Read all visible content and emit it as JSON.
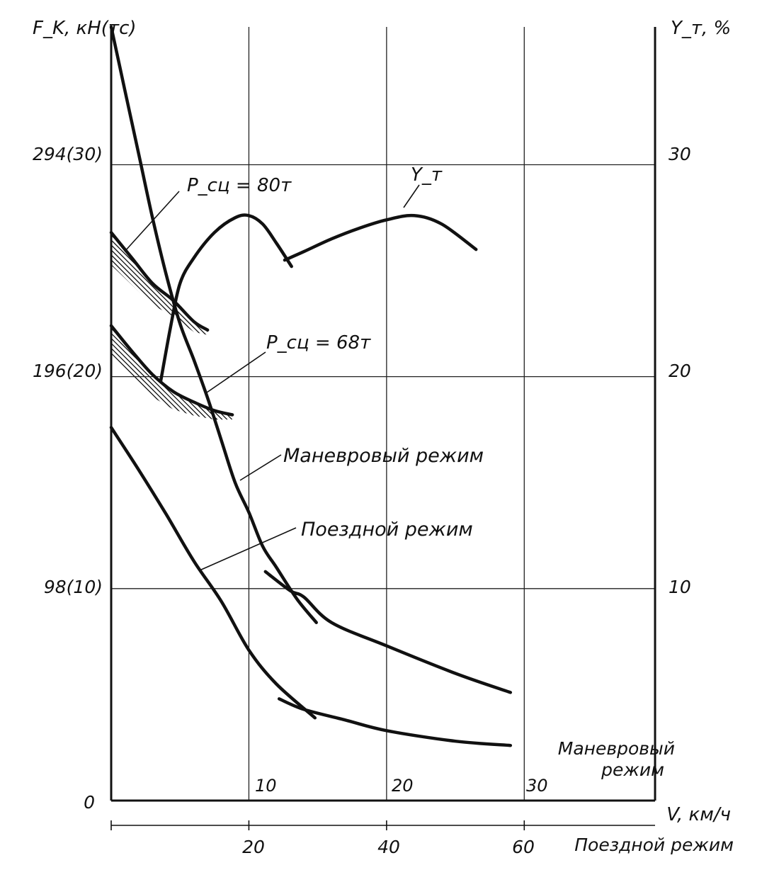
{
  "chart_data": {
    "type": "line",
    "left_axis": {
      "title": "F_K, кН(тс)",
      "ticks": [
        {
          "value": 0,
          "label": "0"
        },
        {
          "value": 10,
          "label": "98(10)"
        },
        {
          "value": 20,
          "label": "196(20)"
        },
        {
          "value": 30,
          "label": "294(30)"
        }
      ],
      "range": [
        0,
        36.5
      ]
    },
    "right_axis": {
      "title": "Y_т, %",
      "ticks": [
        {
          "value": 10,
          "label": "10"
        },
        {
          "value": 20,
          "label": "20"
        },
        {
          "value": 30,
          "label": "30"
        }
      ],
      "range": [
        0,
        36.5
      ]
    },
    "x_axis_shunting": {
      "title_line1": "Маневровый",
      "title_line2": "режим",
      "ticks": [
        {
          "value": 10,
          "label": "10"
        },
        {
          "value": 20,
          "label": "20"
        },
        {
          "value": 30,
          "label": "30"
        }
      ],
      "range": [
        0,
        39.5
      ]
    },
    "x_axis_train": {
      "unit_label": "V, км/ч",
      "title": "Поездной режим",
      "ticks": [
        {
          "value": 20,
          "label": "20"
        },
        {
          "value": 40,
          "label": "40"
        },
        {
          "value": 60,
          "label": "60"
        }
      ],
      "range": [
        0,
        79
      ]
    },
    "grid": true,
    "series": [
      {
        "id": "shunting_main",
        "points": [
          [
            0,
            36.5
          ],
          [
            1,
            33.5
          ],
          [
            2,
            30.5
          ],
          [
            3,
            27.5
          ],
          [
            4,
            24.8
          ],
          [
            5,
            22.5
          ],
          [
            6,
            20.8
          ],
          [
            7,
            19
          ],
          [
            8,
            17
          ],
          [
            9,
            15
          ],
          [
            10,
            13.6
          ],
          [
            11,
            12
          ],
          [
            12,
            11
          ],
          [
            13.5,
            9.5
          ],
          [
            14.9,
            8.4
          ]
        ]
      },
      {
        "id": "shunting_tail",
        "points": [
          [
            11.2,
            10.8
          ],
          [
            13,
            9.9
          ],
          [
            14,
            9.6
          ],
          [
            16,
            8.4
          ],
          [
            20,
            7.3
          ],
          [
            25,
            6
          ],
          [
            29,
            5.1
          ]
        ]
      },
      {
        "id": "train_main",
        "points": [
          [
            0,
            17.6
          ],
          [
            2,
            15.6
          ],
          [
            4,
            13.5
          ],
          [
            6,
            11.3
          ],
          [
            8,
            9.4
          ],
          [
            10,
            7.1
          ],
          [
            12,
            5.5
          ],
          [
            14.8,
            3.9
          ]
        ]
      },
      {
        "id": "train_tail",
        "points": [
          [
            12.2,
            4.8
          ],
          [
            14,
            4.3
          ],
          [
            17,
            3.8
          ],
          [
            20,
            3.3
          ],
          [
            25,
            2.8
          ],
          [
            29,
            2.6
          ]
        ]
      },
      {
        "id": "adhesion_80",
        "points": [
          [
            0,
            26.8
          ],
          [
            1.5,
            25.6
          ],
          [
            3,
            24.4
          ],
          [
            4.5,
            23.6
          ],
          [
            6,
            22.6
          ],
          [
            7,
            22.2
          ]
        ]
      },
      {
        "id": "adhesion_68",
        "points": [
          [
            0,
            22.4
          ],
          [
            1.5,
            21.2
          ],
          [
            3,
            20.1
          ],
          [
            4.5,
            19.3
          ],
          [
            6,
            18.8
          ],
          [
            7.5,
            18.4
          ],
          [
            8.8,
            18.2
          ]
        ]
      },
      {
        "id": "efficiency_rise",
        "points": [
          [
            3.6,
            19.8
          ],
          [
            4.3,
            22.3
          ],
          [
            5,
            24.4
          ],
          [
            6,
            25.6
          ],
          [
            7.5,
            26.8
          ],
          [
            9,
            27.5
          ],
          [
            10,
            27.6
          ],
          [
            11,
            27.2
          ],
          [
            12,
            26.3
          ],
          [
            13.1,
            25.2
          ]
        ]
      },
      {
        "id": "efficiency_fall",
        "points": [
          [
            12.6,
            25.5
          ],
          [
            14,
            25.9
          ],
          [
            16,
            26.5
          ],
          [
            18,
            27
          ],
          [
            20,
            27.4
          ],
          [
            22,
            27.6
          ],
          [
            24,
            27.2
          ],
          [
            26.5,
            26
          ]
        ]
      }
    ],
    "annotations": [
      {
        "id": "yt",
        "text": "Y_т"
      },
      {
        "id": "p80",
        "text": "P_сц = 80т"
      },
      {
        "id": "p68",
        "text": "P_сц = 68т"
      },
      {
        "id": "shunting",
        "text": "Маневровый режим"
      },
      {
        "id": "train",
        "text": "Поездной режим"
      }
    ]
  }
}
